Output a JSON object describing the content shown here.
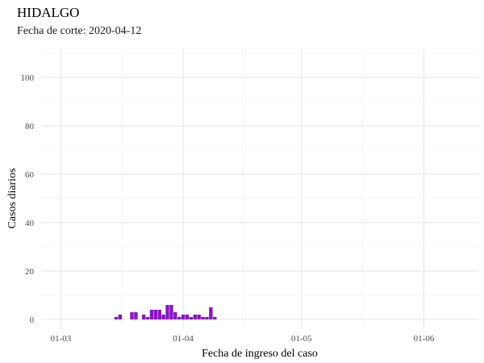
{
  "chart_data": {
    "type": "bar",
    "title": "HIDALGO",
    "subtitle": "Fecha de corte: 2020-04-12",
    "xlabel": "Fecha de ingreso del caso",
    "ylabel": "Casos diarios",
    "x_tick_labels": [
      "01-03",
      "01-04",
      "01-05",
      "01-06"
    ],
    "x_tick_dates": [
      "2020-03-01",
      "2020-04-01",
      "2020-05-01",
      "2020-06-01"
    ],
    "y_ticks": [
      0,
      20,
      40,
      60,
      80,
      100
    ],
    "xlim": [
      "2020-02-25",
      "2020-06-15"
    ],
    "ylim": [
      -4,
      112
    ],
    "grid": true,
    "bar_color": "#8A14C8",
    "series": [
      {
        "dates": [
          "2020-03-15",
          "2020-03-16",
          "2020-03-19",
          "2020-03-20",
          "2020-03-22",
          "2020-03-23",
          "2020-03-24",
          "2020-03-25",
          "2020-03-26",
          "2020-03-27",
          "2020-03-28",
          "2020-03-29",
          "2020-03-30",
          "2020-03-31",
          "2020-04-01",
          "2020-04-02",
          "2020-04-03",
          "2020-04-04",
          "2020-04-05",
          "2020-04-06",
          "2020-04-07",
          "2020-04-08",
          "2020-04-09"
        ],
        "values": [
          1,
          2,
          3,
          3,
          2,
          1,
          4,
          4,
          4,
          2,
          6,
          6,
          3,
          1,
          2,
          2,
          1,
          2,
          2,
          1,
          1,
          5,
          1
        ]
      }
    ]
  }
}
